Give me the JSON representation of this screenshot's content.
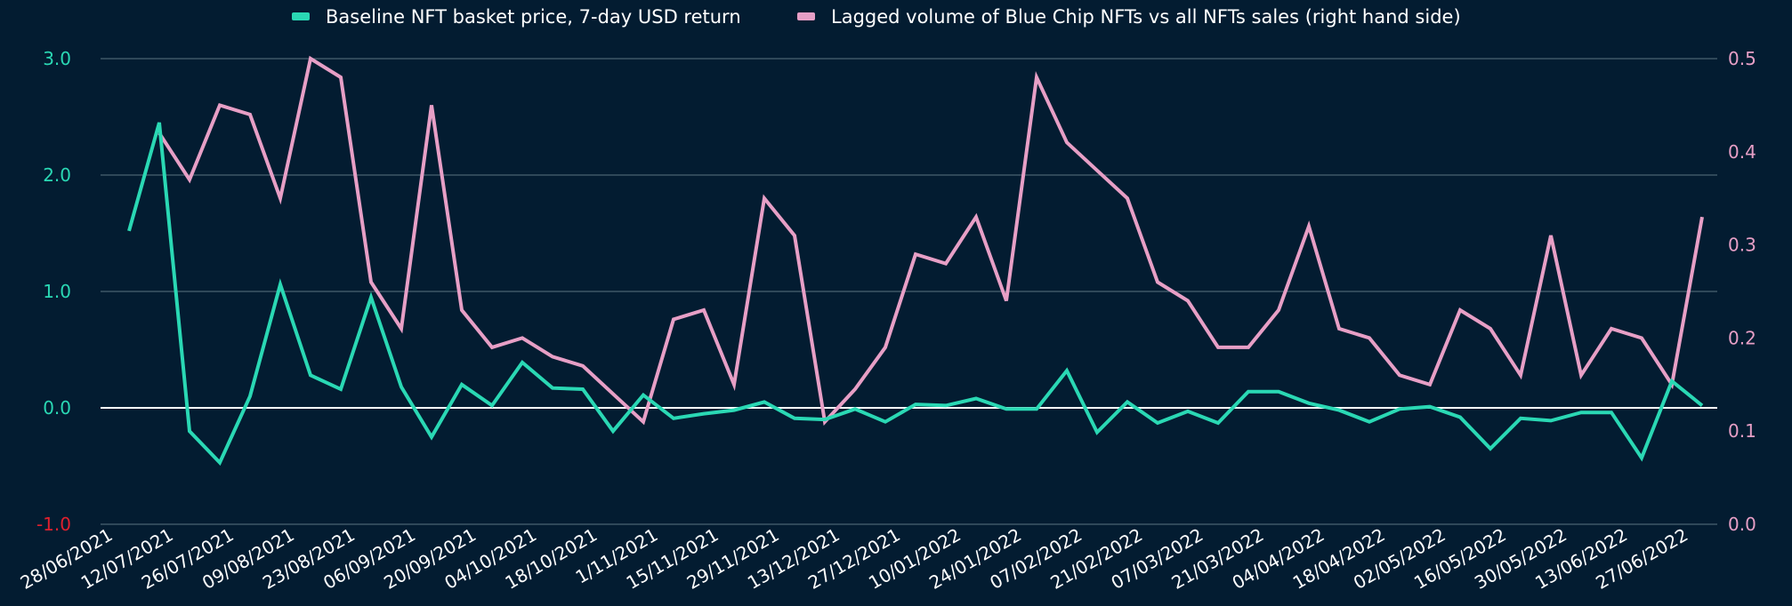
{
  "chart_data": {
    "type": "line",
    "title": "",
    "legend_position": "top-center",
    "legend": [
      "Baseline NFT basket price, 7-day USD return",
      "Lagged volume of Blue Chip NFTs vs all NFTs sales (right hand side)"
    ],
    "x_tick_labels": [
      "28/06/2021",
      "12/07/2021",
      "26/07/2021",
      "09/08/2021",
      "23/08/2021",
      "06/09/2021",
      "20/09/2021",
      "04/10/2021",
      "18/10/2021",
      "1/11/2021",
      "15/11/2021",
      "29/11/2021",
      "13/12/2021",
      "27/12/2021",
      "10/01/2022",
      "24/01/2022",
      "07/02/2022",
      "21/02/2022",
      "07/03/2022",
      "21/03/2022",
      "04/04/2022",
      "18/04/2022",
      "02/05/2022",
      "16/05/2022",
      "30/05/2022",
      "13/06/2022",
      "27/06/2022"
    ],
    "y_left": {
      "ylim": [
        -1.0,
        3.0
      ],
      "ticks": [
        "3.0",
        "2.0",
        "1.0",
        "0.0",
        "-1.0"
      ],
      "tick_values": [
        3,
        2,
        1,
        0,
        -1
      ]
    },
    "y_right": {
      "ylim": [
        0.0,
        0.5
      ],
      "ticks": [
        "0.5",
        "0.4",
        "0.3",
        "0.2",
        "0.1",
        "0.0"
      ],
      "tick_values": [
        0.5,
        0.4,
        0.3,
        0.2,
        0.1,
        0.0
      ]
    },
    "grid": true,
    "series": [
      {
        "name": "Baseline NFT basket price, 7-day USD return",
        "axis": "left",
        "color": "#2ad8b4",
        "start_index": 0,
        "values": [
          1.52,
          2.45,
          -0.2,
          -0.47,
          0.1,
          1.06,
          0.28,
          0.16,
          0.95,
          0.18,
          -0.25,
          0.2,
          0.02,
          0.39,
          0.17,
          0.16,
          -0.2,
          0.11,
          -0.09,
          -0.05,
          -0.02,
          0.05,
          -0.09,
          -0.1,
          -0.01,
          -0.12,
          0.03,
          0.02,
          0.08,
          -0.01,
          -0.01,
          0.32,
          -0.21,
          0.05,
          -0.13,
          -0.03,
          -0.13,
          0.14,
          0.14,
          0.04,
          -0.02,
          -0.12,
          -0.01,
          0.01,
          -0.08,
          -0.35,
          -0.09,
          -0.11,
          -0.04,
          -0.04,
          -0.43,
          0.23,
          0.02
        ]
      },
      {
        "name": "Lagged volume of Blue Chip NFTs vs all NFTs sales (right hand side)",
        "axis": "right",
        "color": "#e79fc6",
        "start_index": 1,
        "values": [
          0.42,
          0.37,
          0.45,
          0.44,
          0.35,
          0.5,
          0.48,
          0.26,
          0.21,
          0.45,
          0.23,
          0.19,
          0.2,
          0.18,
          0.17,
          0.14,
          0.11,
          0.22,
          0.23,
          0.15,
          0.35,
          0.31,
          0.11,
          0.145,
          0.19,
          0.29,
          0.28,
          0.33,
          0.24,
          0.48,
          0.41,
          0.38,
          0.35,
          0.26,
          0.24,
          0.19,
          0.19,
          0.23,
          0.32,
          0.21,
          0.2,
          0.16,
          0.15,
          0.23,
          0.21,
          0.16,
          0.31,
          0.16,
          0.21,
          0.2,
          0.15,
          0.33
        ]
      }
    ],
    "colors": {
      "background": "#031c31",
      "grid": "#4a6272",
      "zero_line": "#ffffff",
      "left_tick": "#2ad8b4",
      "left_negative_tick": "#e0202e",
      "right_tick": "#e79fc6"
    }
  }
}
